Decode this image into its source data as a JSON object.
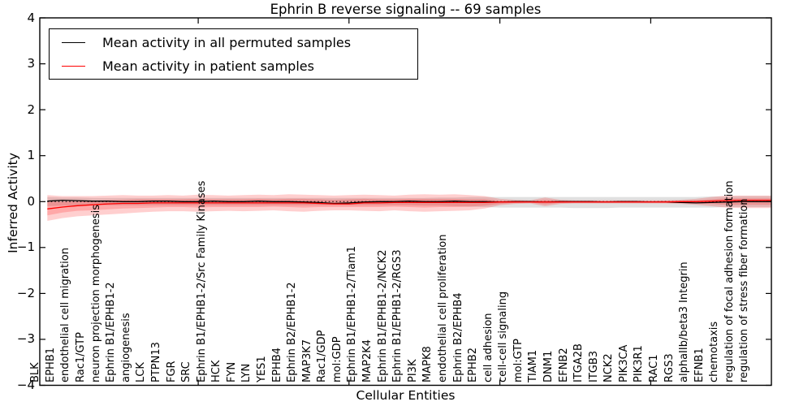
{
  "chart_data": {
    "type": "line",
    "title": "Ephrin B reverse signaling -- 69 samples",
    "xlabel": "Cellular Entities",
    "ylabel": "Inferred Activity",
    "ylim": [
      -4,
      4
    ],
    "yticks": {
      "values": [
        4,
        3,
        2,
        1,
        0,
        -1,
        -2,
        -3,
        -4
      ],
      "labels": [
        "4",
        "3",
        "2",
        "1",
        "0",
        "−1",
        "−2",
        "−3",
        "−4"
      ]
    },
    "grid": false,
    "zero_line": {
      "style": "dotted",
      "color": "#000000",
      "value": 0
    },
    "legend_position": "upper left",
    "legend": [
      {
        "label": "Mean activity in all permuted samples",
        "color": "#000000"
      },
      {
        "label": "Mean activity in patient samples",
        "color": "#ff0000"
      }
    ],
    "colors": {
      "permuted_line": "#000000",
      "patient_line": "#ff0000",
      "patient_fill": "rgba(255,0,0,0.19)",
      "permuted_fill": "rgba(145,145,145,0.28)"
    },
    "categories": [
      "BLK",
      "EPHB1",
      "endothelial cell migration",
      "Rac1/GTP",
      "neuron projection morphogenesis",
      "Ephrin B1/EPHB1-2",
      "angiogenesis",
      "LCK",
      "PTPN13",
      "FGR",
      "SRC",
      "Ephrin B1/EPHB1-2/Src Family Kinases",
      "HCK",
      "FYN",
      "LYN",
      "YES1",
      "EPHB4",
      "Ephrin B2/EPHB1-2",
      "MAP3K7",
      "Rac1/GDP",
      "mol:GDP",
      "Ephrin B1/EPHB1-2/Tiam1",
      "MAP2K4",
      "Ephrin B1/EPHB1-2/NCK2",
      "Ephrin B1/EPHB1-2/RGS3",
      "PI3K",
      "MAPK8",
      "endothelial cell proliferation",
      "Ephrin B2/EPHB4",
      "EPHB2",
      "cell adhesion",
      "cell-cell signaling",
      "mol:GTP",
      "TIAM1",
      "DNM1",
      "EFNB2",
      "ITGA2B",
      "ITGB3",
      "NCK2",
      "PIK3CA",
      "PIK3R1",
      "RAC1",
      "RGS3",
      "alphaIIb/beta3 Integrin",
      "EFNB1",
      "chemotaxis",
      "regulation of focal adhesion formation",
      "regulation of stress fiber formation"
    ],
    "series": [
      {
        "name": "Mean activity in all permuted samples",
        "values": [
          0.01,
          0.03,
          0.02,
          0.01,
          0.01,
          0,
          0,
          0.01,
          0.01,
          0,
          0,
          0.01,
          0,
          0,
          0.01,
          0,
          0,
          -0.01,
          -0.02,
          -0.04,
          -0.03,
          -0.01,
          0,
          0,
          0.01,
          0,
          0,
          0.01,
          0,
          0,
          -0.01,
          0,
          0,
          -0.01,
          0,
          0,
          0,
          -0.01,
          0,
          0,
          -0.01,
          -0.01,
          -0.02,
          -0.03,
          -0.02,
          -0.01,
          0,
          0
        ]
      },
      {
        "name": "Mean activity in patient samples",
        "values": [
          -0.16,
          -0.12,
          -0.09,
          -0.07,
          -0.05,
          -0.04,
          -0.04,
          -0.03,
          -0.03,
          -0.03,
          -0.03,
          -0.03,
          -0.03,
          -0.03,
          -0.03,
          -0.03,
          -0.03,
          -0.03,
          -0.04,
          -0.05,
          -0.05,
          -0.03,
          -0.03,
          -0.02,
          -0.02,
          -0.02,
          -0.02,
          -0.02,
          -0.02,
          -0.02,
          -0.01,
          -0.01,
          -0.01,
          -0.01,
          -0.01,
          -0.01,
          -0.01,
          -0.01,
          -0.01,
          -0.01,
          -0.01,
          -0.01,
          0,
          0,
          0.01,
          0.02,
          0.03,
          0.03
        ]
      }
    ],
    "bands": {
      "patient_outer": {
        "upper": [
          0.14,
          0.12,
          0.12,
          0.12,
          0.13,
          0.14,
          0.13,
          0.13,
          0.14,
          0.13,
          0.15,
          0.14,
          0.13,
          0.14,
          0.15,
          0.14,
          0.16,
          0.15,
          0.14,
          0.13,
          0.14,
          0.15,
          0.14,
          0.13,
          0.15,
          0.16,
          0.15,
          0.16,
          0.14,
          0.12,
          0.06,
          0.04,
          0.03,
          0.09,
          0.04,
          0.03,
          0.03,
          0.03,
          0.03,
          0.03,
          0.03,
          0.03,
          0.04,
          0.06,
          0.1,
          0.13,
          0.13,
          0.13
        ],
        "lower": [
          -0.42,
          -0.36,
          -0.32,
          -0.3,
          -0.28,
          -0.26,
          -0.24,
          -0.22,
          -0.21,
          -0.21,
          -0.22,
          -0.21,
          -0.2,
          -0.21,
          -0.2,
          -0.19,
          -0.21,
          -0.22,
          -0.2,
          -0.19,
          -0.19,
          -0.2,
          -0.21,
          -0.19,
          -0.21,
          -0.22,
          -0.21,
          -0.2,
          -0.19,
          -0.15,
          -0.08,
          -0.05,
          -0.04,
          -0.1,
          -0.05,
          -0.04,
          -0.04,
          -0.04,
          -0.04,
          -0.04,
          -0.04,
          -0.04,
          -0.05,
          -0.07,
          -0.1,
          -0.13,
          -0.14,
          -0.14
        ]
      },
      "patient_inner": {
        "upper": [
          0,
          0,
          0.01,
          0.02,
          0.03,
          0.04,
          0.05,
          0.05,
          0.05,
          0.05,
          0.06,
          0.05,
          0.05,
          0.05,
          0.06,
          0.05,
          0.06,
          0.06,
          0.05,
          0.04,
          0.05,
          0.06,
          0.05,
          0.05,
          0.06,
          0.06,
          0.06,
          0.06,
          0.05,
          0.05,
          0.02,
          0.02,
          0.01,
          0.04,
          0.02,
          0.01,
          0.01,
          0.01,
          0.01,
          0.01,
          0.01,
          0.02,
          0.02,
          0.03,
          0.05,
          0.07,
          0.07,
          0.07
        ],
        "lower": [
          -0.3,
          -0.24,
          -0.2,
          -0.19,
          -0.17,
          -0.15,
          -0.14,
          -0.13,
          -0.12,
          -0.12,
          -0.13,
          -0.12,
          -0.12,
          -0.12,
          -0.12,
          -0.11,
          -0.12,
          -0.13,
          -0.12,
          -0.12,
          -0.12,
          -0.12,
          -0.12,
          -0.11,
          -0.12,
          -0.13,
          -0.12,
          -0.12,
          -0.11,
          -0.09,
          -0.05,
          -0.03,
          -0.02,
          -0.06,
          -0.03,
          -0.02,
          -0.02,
          -0.02,
          -0.02,
          -0.02,
          -0.02,
          -0.02,
          -0.03,
          -0.04,
          -0.05,
          -0.07,
          -0.07,
          -0.07
        ]
      },
      "permuted": {
        "upper": [
          0.1,
          0.09,
          0.09,
          0.08,
          0.08,
          0.08,
          0.08,
          0.08,
          0.08,
          0.08,
          0.08,
          0.08,
          0.08,
          0.08,
          0.08,
          0.08,
          0.08,
          0.08,
          0.08,
          0.08,
          0.08,
          0.08,
          0.08,
          0.08,
          0.08,
          0.08,
          0.09,
          0.09,
          0.1,
          0.1,
          0.1,
          0.1,
          0.1,
          0.1,
          0.1,
          0.1,
          0.1,
          0.1,
          0.1,
          0.1,
          0.1,
          0.1,
          0.1,
          0.1,
          0.11,
          0.11,
          0.12,
          0.12
        ],
        "lower": [
          -0.1,
          -0.09,
          -0.09,
          -0.08,
          -0.08,
          -0.08,
          -0.08,
          -0.08,
          -0.08,
          -0.08,
          -0.08,
          -0.08,
          -0.08,
          -0.08,
          -0.08,
          -0.08,
          -0.08,
          -0.08,
          -0.08,
          -0.08,
          -0.08,
          -0.08,
          -0.08,
          -0.08,
          -0.08,
          -0.09,
          -0.09,
          -0.1,
          -0.11,
          -0.12,
          -0.13,
          -0.13,
          -0.13,
          -0.13,
          -0.13,
          -0.14,
          -0.14,
          -0.14,
          -0.13,
          -0.13,
          -0.13,
          -0.13,
          -0.13,
          -0.13,
          -0.13,
          -0.12,
          -0.12,
          -0.12
        ]
      }
    }
  }
}
